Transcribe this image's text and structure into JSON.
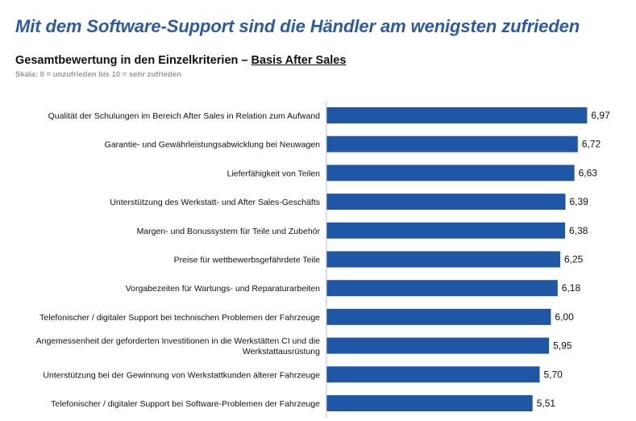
{
  "headline": "Mit dem Software-Support sind die Händler am wenigsten zufrieden",
  "subtitle_main": "Gesamtbewertung in den Einzelkriterien – ",
  "subtitle_basis": "Basis After Sales",
  "scale_note": "Skala: 0 = unzufrieden bis 10 = sehr zufrieden",
  "colors": {
    "bar": "#1f56a5",
    "headline": "#2b5aa8"
  },
  "chart_data": {
    "type": "bar",
    "orientation": "horizontal",
    "title": "Gesamtbewertung in den Einzelkriterien – Basis After Sales",
    "xlabel": "",
    "ylabel": "",
    "xlim": [
      0,
      10
    ],
    "grid": false,
    "categories": [
      [
        "Qualität der Schulungen im Bereich After Sales in Relation zum Aufwand"
      ],
      [
        "Garantie- und Gewährleistungsabwicklung bei Neuwagen"
      ],
      [
        "Lieferfähigkeit von Teilen"
      ],
      [
        "Unterstützung des Werkstatt- und After Sales-Geschäfts"
      ],
      [
        "Margen- und Bonussystem für Teile und Zubehör"
      ],
      [
        "Preise für wettbewerbsgefährdete Teile"
      ],
      [
        "Vorgabezeiten für Wartungs- und Reparaturarbeiten"
      ],
      [
        "Telefonischer / digitaler Support bei technischen Problemen der Fahrzeuge"
      ],
      [
        "Angemessenheit der geforderten Investitionen in die Werkstätten CI und die",
        "Werkstattausrüstung"
      ],
      [
        "Unterstützung bei der Gewinnung von Werkstattkunden älterer Fahrzeuge"
      ],
      [
        "Telefonischer / digitaler Support bei Software-Problemen der Fahrzeuge"
      ]
    ],
    "values": [
      6.97,
      6.72,
      6.63,
      6.39,
      6.38,
      6.25,
      6.18,
      6.0,
      5.95,
      5.7,
      5.51
    ],
    "value_labels": [
      "6,97",
      "6,72",
      "6,63",
      "6,39",
      "6,38",
      "6,25",
      "6,18",
      "6,00",
      "5,95",
      "5,70",
      "5,51"
    ]
  }
}
